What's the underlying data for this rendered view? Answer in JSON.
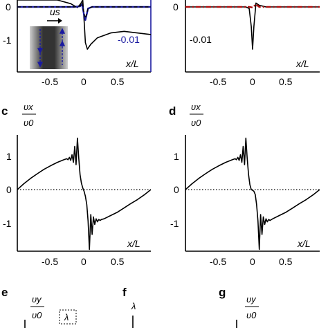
{
  "panel_letters": [
    "c",
    "d",
    "e",
    "f",
    "g"
  ],
  "fraction_labels": {
    "vx_num": "υx",
    "vx_den": "υ0",
    "vy_num": "υy",
    "vy_den": "υ0",
    "lambda": "λ"
  },
  "inset_labels": {
    "us": "us",
    "lambda_dim": "λ"
  },
  "colors": {
    "black": "#000000",
    "blue": "#1a1aa0",
    "red": "#b01010",
    "inset_dark": "#333333",
    "inset_light": "#cfcfcf"
  },
  "chart_data": [
    {
      "id": "a",
      "type": "line",
      "xlabel": "x/L",
      "ylabel": "",
      "xlim": [
        -1,
        1
      ],
      "ylim": [
        -1.6,
        0.3
      ],
      "x_ticks": [
        "-0.5",
        "0",
        "0.5"
      ],
      "y_ticks": [
        "0",
        "-1"
      ],
      "right_tick_label": "-0.01",
      "series": [
        {
          "style": "solid black",
          "x": [
            -1,
            -0.7,
            -0.4,
            -0.2,
            -0.1,
            -0.05,
            -0.02,
            0,
            0.02,
            0.05,
            0.1,
            0.2,
            0.4,
            0.6,
            1
          ],
          "y": [
            0.35,
            0.3,
            0.22,
            0.1,
            -0.02,
            0.1,
            0.35,
            -0.4,
            -1.1,
            -1.3,
            -1.15,
            -0.95,
            -0.8,
            -0.75,
            -0.85
          ]
        },
        {
          "style": "solid blue",
          "x": [
            -1,
            -0.4,
            -0.15,
            -0.06,
            -0.03,
            0,
            0.02,
            0.06,
            0.12,
            0.3,
            0.6,
            1
          ],
          "y": [
            0.0,
            0.0,
            0.0,
            0.02,
            0.08,
            -0.25,
            -0.4,
            -0.05,
            0.0,
            0.0,
            0.0,
            0.0
          ]
        },
        {
          "style": "dashed black",
          "x": [
            -1,
            -0.4,
            -0.15,
            -0.06,
            -0.03,
            0,
            0.02,
            0.06,
            0.12,
            0.3,
            0.6,
            1
          ],
          "y": [
            0.0,
            0.0,
            0.0,
            0.03,
            0.12,
            -0.2,
            -0.35,
            -0.04,
            0.0,
            0.0,
            0.0,
            0.0
          ]
        }
      ]
    },
    {
      "id": "b",
      "type": "line",
      "xlabel": "x/L",
      "ylabel": "",
      "xlim": [
        -1,
        1
      ],
      "ylim": [
        -1.6,
        0.3
      ],
      "x_ticks": [
        "-0.5",
        "0",
        "0.5"
      ],
      "y_ticks": [
        "0"
      ],
      "annotation": "-0.01",
      "series": [
        {
          "style": "solid black",
          "x": [
            -1,
            -0.3,
            -0.1,
            -0.05,
            -0.02,
            0,
            0.02,
            0.05,
            0.1,
            0.2,
            0.5,
            1
          ],
          "y": [
            0.0,
            0.0,
            0.0,
            -0.05,
            -0.6,
            -1.3,
            -0.6,
            0.12,
            0.05,
            0.0,
            0.0,
            0.0
          ]
        },
        {
          "style": "dash-dot red",
          "x": [
            -1,
            -0.3,
            -0.05,
            0,
            0.05,
            0.1,
            0.3,
            1
          ],
          "y": [
            0.0,
            0.0,
            0.0,
            -0.02,
            0.08,
            0.0,
            0.0,
            0.0
          ]
        }
      ]
    },
    {
      "id": "c",
      "type": "line",
      "xlabel": "x/L",
      "ylabel": "υx/υ0",
      "xlim": [
        -1,
        1
      ],
      "ylim": [
        -1.9,
        1.7
      ],
      "x_ticks": [
        "-0.5",
        "0",
        "0.5"
      ],
      "y_ticks": [
        "1",
        "0",
        "-1"
      ],
      "grid": false,
      "series": [
        {
          "style": "solid black",
          "x": [
            -1,
            -0.9,
            -0.8,
            -0.7,
            -0.6,
            -0.5,
            -0.4,
            -0.3,
            -0.26,
            -0.24,
            -0.22,
            -0.2,
            -0.18,
            -0.16,
            -0.14,
            -0.12,
            -0.1,
            -0.08,
            -0.06,
            -0.04,
            -0.02,
            0,
            0.02,
            0.04,
            0.06,
            0.08,
            0.1,
            0.12,
            0.14,
            0.16,
            0.18,
            0.2,
            0.22,
            0.24,
            0.26,
            0.3,
            0.4,
            0.5,
            0.6,
            0.7,
            0.8,
            0.9,
            1
          ],
          "y": [
            0.0,
            0.18,
            0.34,
            0.48,
            0.61,
            0.72,
            0.82,
            0.9,
            0.93,
            0.9,
            0.97,
            0.88,
            1.05,
            0.82,
            1.3,
            0.75,
            1.55,
            0.95,
            0.45,
            0.2,
            0.05,
            -0.05,
            -0.2,
            -0.45,
            -0.95,
            -1.8,
            -0.75,
            -1.35,
            -0.82,
            -1.05,
            -0.88,
            -0.97,
            -0.9,
            -0.93,
            -0.9,
            -0.88,
            -0.78,
            -0.68,
            -0.55,
            -0.42,
            -0.3,
            -0.16,
            0.0
          ]
        },
        {
          "style": "dotted black",
          "x": [
            -1,
            1
          ],
          "y": [
            0,
            0
          ]
        }
      ]
    },
    {
      "id": "d",
      "type": "line",
      "xlabel": "x/L",
      "ylabel": "υx/υ0",
      "xlim": [
        -1,
        1
      ],
      "ylim": [
        -1.9,
        1.7
      ],
      "x_ticks": [
        "-0.5",
        "0",
        "0.5"
      ],
      "y_ticks": [
        "1",
        "0",
        "-1"
      ],
      "grid": false,
      "series": [
        {
          "style": "solid black",
          "x": [
            -1,
            -0.9,
            -0.8,
            -0.7,
            -0.6,
            -0.5,
            -0.4,
            -0.3,
            -0.26,
            -0.24,
            -0.22,
            -0.2,
            -0.18,
            -0.16,
            -0.14,
            -0.12,
            -0.1,
            -0.08,
            -0.06,
            -0.04,
            -0.02,
            0,
            0.02,
            0.04,
            0.06,
            0.08,
            0.1,
            0.12,
            0.14,
            0.16,
            0.18,
            0.2,
            0.22,
            0.24,
            0.26,
            0.3,
            0.4,
            0.5,
            0.6,
            0.7,
            0.8,
            0.9,
            1
          ],
          "y": [
            0.0,
            0.18,
            0.34,
            0.48,
            0.61,
            0.72,
            0.82,
            0.9,
            0.93,
            0.9,
            0.97,
            0.88,
            1.05,
            0.82,
            1.3,
            0.75,
            1.55,
            0.95,
            0.45,
            0.15,
            0.0,
            -0.02,
            -0.05,
            -0.15,
            -0.45,
            -0.95,
            -1.8,
            -0.75,
            -1.35,
            -0.82,
            -1.05,
            -0.88,
            -0.97,
            -0.9,
            -0.93,
            -0.88,
            -0.78,
            -0.68,
            -0.55,
            -0.42,
            -0.3,
            -0.16,
            0.0
          ]
        },
        {
          "style": "dotted black",
          "x": [
            -1,
            1
          ],
          "y": [
            0,
            0
          ]
        }
      ]
    }
  ]
}
